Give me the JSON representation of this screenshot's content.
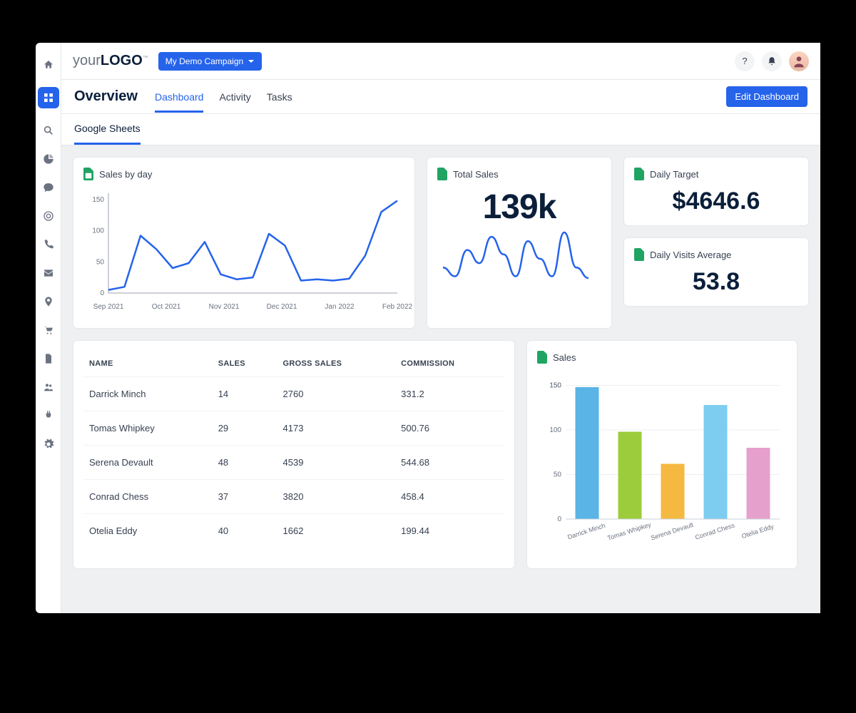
{
  "logo": {
    "part1": "your",
    "part2": "LOGO",
    "tm": "™"
  },
  "campaign": {
    "label": "My Demo Campaign"
  },
  "topbar": {
    "help": "?",
    "avatar_initial": "👤"
  },
  "header": {
    "title": "Overview"
  },
  "tabs": [
    {
      "label": "Dashboard",
      "active": true
    },
    {
      "label": "Activity",
      "active": false
    },
    {
      "label": "Tasks",
      "active": false
    }
  ],
  "edit_button": "Edit Dashboard",
  "subtab": "Google Sheets",
  "cards": {
    "sales_by_day": {
      "title": "Sales by day",
      "type": "line",
      "line_color": "#2563eb",
      "line_width": 2.5,
      "y_ticks": [
        0,
        50,
        100,
        150
      ],
      "ylim": [
        0,
        160
      ],
      "x_labels": [
        "Sep 2021",
        "Oct 2021",
        "Nov 2021",
        "Dec 2021",
        "Jan 2022",
        "Feb 2022"
      ],
      "values": [
        5,
        10,
        92,
        70,
        40,
        48,
        82,
        30,
        22,
        25,
        95,
        76,
        20,
        22,
        20,
        23,
        60,
        130,
        148
      ],
      "axis_color": "#9ca3af",
      "grid_color": "#f1f3f5",
      "label_fontsize": 10
    },
    "total_sales": {
      "title": "Total Sales",
      "value": "139k",
      "spark_color": "#2563eb",
      "spark_values": [
        30,
        20,
        50,
        35,
        65,
        45,
        20,
        60,
        40,
        20,
        70,
        30,
        18
      ]
    },
    "daily_target": {
      "title": "Daily Target",
      "value": "$4646.6"
    },
    "daily_visits": {
      "title": "Daily Visits Average",
      "value": "53.8"
    },
    "sales_bar": {
      "title": "Sales",
      "type": "bar",
      "y_ticks": [
        0,
        50,
        100,
        150,
        150
      ],
      "ylim": [
        0,
        160
      ],
      "categories": [
        "Darrick Minch",
        "Tomas Whipkey",
        "Serena Devault",
        "Conrad Chess",
        "Otelia Eddy"
      ],
      "values": [
        148,
        98,
        62,
        128,
        80
      ],
      "bar_colors": [
        "#5ab4e6",
        "#9ccc3c",
        "#f5b942",
        "#7dcdf0",
        "#e6a0cc"
      ],
      "grid_color": "#eceff2",
      "label_fontsize": 9
    }
  },
  "table": {
    "columns": [
      "NAME",
      "SALES",
      "GROSS SALES",
      "COMMISSION"
    ],
    "rows": [
      [
        "Darrick Minch",
        "14",
        "2760",
        "331.2"
      ],
      [
        "Tomas Whipkey",
        "29",
        "4173",
        "500.76"
      ],
      [
        "Serena Devault",
        "48",
        "4539",
        "544.68"
      ],
      [
        "Conrad Chess",
        "37",
        "3820",
        "458.4"
      ],
      [
        "Otelia Eddy",
        "40",
        "1662",
        "199.44"
      ]
    ]
  },
  "sidebar_icons": [
    "home",
    "grid",
    "search",
    "pie",
    "chat",
    "target",
    "phone",
    "mail",
    "pin",
    "cart",
    "file",
    "users",
    "plug",
    "gear"
  ],
  "colors": {
    "accent": "#2563eb",
    "text": "#0b1f3a",
    "border": "#e5e7eb",
    "pagebg": "#eef0f2",
    "gs_green": "#1fa463"
  }
}
